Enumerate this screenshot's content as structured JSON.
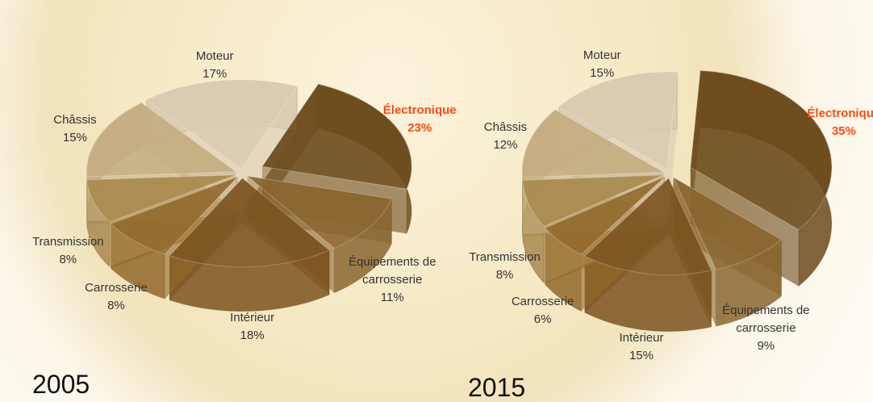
{
  "chart_data": [
    {
      "type": "pie",
      "title": "2005",
      "categories": [
        "Électronique",
        "Équipements de carrosserie",
        "Intérieur",
        "Carrosserie",
        "Transmission",
        "Châssis",
        "Moteur"
      ],
      "values": [
        23,
        11,
        18,
        8,
        8,
        15,
        17
      ],
      "value_labels": [
        "23%",
        "11%",
        "18%",
        "8%",
        "8%",
        "15%",
        "17%"
      ],
      "colors": [
        "#6b4a1c",
        "#8a6630",
        "#7b5420",
        "#92692c",
        "#a8894f",
        "#c4ad82",
        "#d9cab0"
      ],
      "label_colors": [
        "#ff4a12",
        "#333333",
        "#333333",
        "#333333",
        "#333333",
        "#333333",
        "#333333"
      ]
    },
    {
      "type": "pie",
      "title": "2015",
      "categories": [
        "Électronique",
        "Équipements de carrosserie",
        "Intérieur",
        "Carrosserie",
        "Transmission",
        "Châssis",
        "Moteur"
      ],
      "values": [
        35,
        9,
        15,
        6,
        8,
        12,
        15
      ],
      "value_labels": [
        "35%",
        "9%",
        "15%",
        "6%",
        "8%",
        "12%",
        "15%"
      ],
      "colors": [
        "#6b4a1c",
        "#8a6630",
        "#7b5420",
        "#92692c",
        "#a8894f",
        "#c4ad82",
        "#d9cab0"
      ],
      "label_colors": [
        "#ff4a12",
        "#333333",
        "#333333",
        "#333333",
        "#333333",
        "#333333",
        "#333333"
      ]
    }
  ]
}
